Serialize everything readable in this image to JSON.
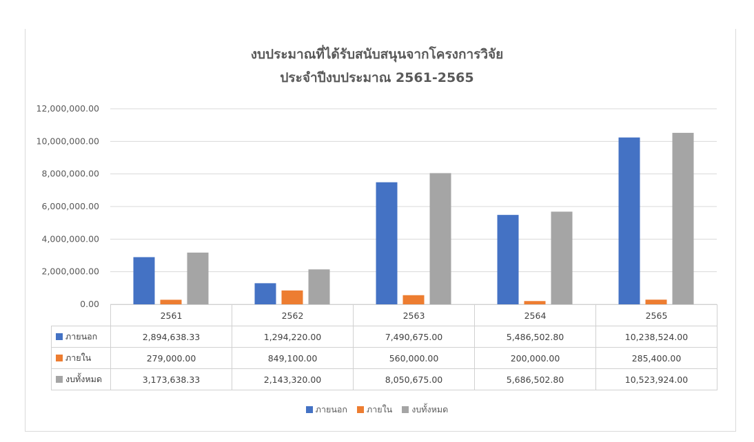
{
  "chart_data": {
    "type": "bar",
    "title_lines": [
      "งบประมาณที่ได้รับสนับสนุนจากโครงการวิจัย",
      "ประจำปีงบประมาณ 2561-2565"
    ],
    "categories": [
      "2561",
      "2562",
      "2563",
      "2564",
      "2565"
    ],
    "series": [
      {
        "name": "ภายนอก",
        "color": "#4472C4",
        "values": [
          2894638.33,
          1294220.0,
          7490675.0,
          5486502.8,
          10238524.0
        ],
        "labels": [
          "2,894,638.33",
          "1,294,220.00",
          "7,490,675.00",
          "5,486,502.80",
          "10,238,524.00"
        ]
      },
      {
        "name": "ภายใน",
        "color": "#ED7D31",
        "values": [
          279000.0,
          849100.0,
          560000.0,
          200000.0,
          285400.0
        ],
        "labels": [
          "279,000.00",
          "849,100.00",
          "560,000.00",
          "200,000.00",
          "285,400.00"
        ]
      },
      {
        "name": "งบทั้งหมด",
        "color": "#A5A5A5",
        "values": [
          3173638.33,
          2143320.0,
          8050675.0,
          5686502.8,
          10523924.0
        ],
        "labels": [
          "3,173,638.33",
          "2,143,320.00",
          "8,050,675.00",
          "5,686,502.80",
          "10,523,924.00"
        ]
      }
    ],
    "ylim": [
      0,
      12000000
    ],
    "yticks": [
      0,
      2000000,
      4000000,
      6000000,
      8000000,
      10000000,
      12000000
    ],
    "ytick_labels": [
      "0.00",
      "2,000,000.00",
      "4,000,000.00",
      "6,000,000.00",
      "8,000,000.00",
      "10,000,000.00",
      "12,000,000.00"
    ],
    "grid": true,
    "legend_position": "bottom",
    "data_table": true
  }
}
